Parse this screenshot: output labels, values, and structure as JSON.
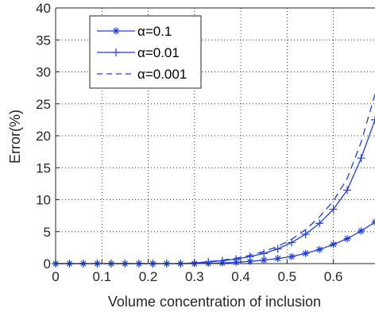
{
  "chart_data": {
    "type": "line",
    "title": "",
    "xlabel": "Volume concentration of inclusion",
    "ylabel": "Error(%)",
    "xlim": [
      0,
      0.69
    ],
    "ylim": [
      0,
      40
    ],
    "xticks": [
      0,
      0.1,
      0.2,
      0.3,
      0.4,
      0.5,
      0.6
    ],
    "xtick_labels": [
      "0",
      "0.1",
      "0.2",
      "0.3",
      "0.4",
      "0.5",
      "0.6"
    ],
    "yticks": [
      0,
      5,
      10,
      15,
      20,
      25,
      30,
      35,
      40
    ],
    "ytick_labels": [
      "0",
      "5",
      "10",
      "15",
      "20",
      "25",
      "30",
      "35",
      "40"
    ],
    "grid": true,
    "grid_style": "dotted",
    "legend_position": "top-left",
    "line_color": "#1f3fe6",
    "series": [
      {
        "name": "α=0.1",
        "style": "solid",
        "marker": "star",
        "x": [
          0,
          0.03,
          0.06,
          0.09,
          0.12,
          0.15,
          0.18,
          0.21,
          0.24,
          0.27,
          0.3,
          0.33,
          0.36,
          0.39,
          0.42,
          0.45,
          0.48,
          0.51,
          0.54,
          0.57,
          0.6,
          0.63,
          0.66,
          0.69
        ],
        "y": [
          0,
          0,
          0,
          0,
          0,
          0,
          0,
          0,
          0,
          0,
          0,
          0.05,
          0.1,
          0.2,
          0.35,
          0.55,
          0.8,
          1.1,
          1.6,
          2.2,
          3.0,
          3.9,
          5.1,
          6.5
        ]
      },
      {
        "name": "α=0.01",
        "style": "solid",
        "marker": "plus",
        "x": [
          0,
          0.03,
          0.06,
          0.09,
          0.12,
          0.15,
          0.18,
          0.21,
          0.24,
          0.27,
          0.3,
          0.33,
          0.36,
          0.39,
          0.42,
          0.45,
          0.48,
          0.51,
          0.54,
          0.57,
          0.6,
          0.63,
          0.66,
          0.69
        ],
        "y": [
          0,
          0,
          0,
          0,
          0,
          0,
          0,
          0,
          0,
          0,
          0.1,
          0.25,
          0.45,
          0.7,
          1.1,
          1.6,
          2.3,
          3.3,
          4.6,
          6.3,
          8.5,
          11.5,
          16.5,
          22.5
        ]
      },
      {
        "name": "α=0.001",
        "style": "dashed",
        "marker": "none",
        "x": [
          0,
          0.03,
          0.06,
          0.09,
          0.12,
          0.15,
          0.18,
          0.21,
          0.24,
          0.27,
          0.3,
          0.33,
          0.36,
          0.39,
          0.42,
          0.45,
          0.48,
          0.51,
          0.54,
          0.57,
          0.6,
          0.63,
          0.66,
          0.69
        ],
        "y": [
          0,
          0,
          0,
          0,
          0,
          0,
          0,
          0,
          0,
          0,
          0.1,
          0.3,
          0.55,
          0.85,
          1.3,
          1.9,
          2.7,
          3.8,
          5.3,
          7.3,
          9.8,
          13.3,
          19.0,
          26.5
        ]
      }
    ]
  }
}
